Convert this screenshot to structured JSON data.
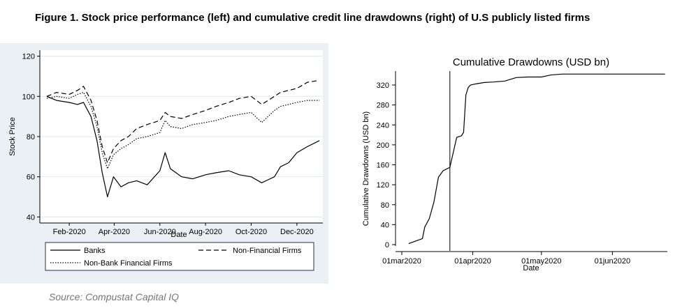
{
  "figure_title": "Figure 1. Stock price performance (left) and cumulative credit line drawdowns (right) of U.S publicly listed firms",
  "source": "Source: Compustat Capital IQ",
  "chart_data": [
    {
      "type": "line",
      "title": "",
      "xlabel": "Date",
      "ylabel": "Stock Price",
      "ylim": [
        40,
        120
      ],
      "yticks": [
        "40",
        "60",
        "80",
        "100",
        "120"
      ],
      "xticks": [
        "Feb-2020",
        "Apr-2020",
        "Jun-2020",
        "Aug-2020",
        "Oct-2020",
        "Dec-2020"
      ],
      "xlim": [
        "2020-01-02",
        "2020-12-31"
      ],
      "grid": true,
      "legend_position": "bottom",
      "x": [
        "2020-01-02",
        "2020-01-15",
        "2020-02-01",
        "2020-02-12",
        "2020-02-20",
        "2020-03-01",
        "2020-03-09",
        "2020-03-16",
        "2020-03-23",
        "2020-03-31",
        "2020-04-10",
        "2020-04-20",
        "2020-05-01",
        "2020-05-15",
        "2020-06-01",
        "2020-06-08",
        "2020-06-15",
        "2020-06-30",
        "2020-07-15",
        "2020-08-01",
        "2020-08-15",
        "2020-09-01",
        "2020-09-15",
        "2020-10-01",
        "2020-10-15",
        "2020-11-01",
        "2020-11-09",
        "2020-11-20",
        "2020-12-01",
        "2020-12-15",
        "2020-12-31"
      ],
      "series": [
        {
          "name": "Banks",
          "style": "solid",
          "values": [
            100,
            98,
            97,
            96,
            97,
            90,
            78,
            62,
            50,
            60,
            55,
            57,
            58,
            56,
            63,
            72,
            64,
            60,
            59,
            61,
            62,
            63,
            61,
            60,
            57,
            60,
            65,
            67,
            72,
            75,
            78
          ]
        },
        {
          "name": "Non-Financial Firms",
          "style": "dashed",
          "values": [
            100,
            102,
            101,
            103,
            105,
            98,
            88,
            75,
            67,
            74,
            78,
            80,
            84,
            86,
            88,
            92,
            90,
            89,
            91,
            93,
            95,
            97,
            99,
            100,
            96,
            100,
            102,
            103,
            104,
            107,
            108
          ]
        },
        {
          "name": "Non-Bank Financial Firms",
          "style": "dotted",
          "values": [
            99,
            100,
            99,
            101,
            102,
            95,
            85,
            72,
            64,
            71,
            74,
            76,
            79,
            80,
            82,
            88,
            85,
            84,
            86,
            87,
            88,
            90,
            91,
            92,
            87,
            93,
            95,
            96,
            97,
            98,
            98
          ]
        }
      ]
    },
    {
      "type": "line",
      "title": "Cumulative Drawdowns (USD bn)",
      "xlabel": "Date",
      "ylabel": "Cumulative Drawdowns (USD bn)",
      "ylim": [
        0,
        340
      ],
      "yticks": [
        "0",
        "40",
        "80",
        "120",
        "160",
        "200",
        "240",
        "280",
        "320"
      ],
      "xticks": [
        "01mar2020",
        "01apr2020",
        "01may2020",
        "01jun2020"
      ],
      "xlim": [
        "2020-03-01",
        "2020-06-25"
      ],
      "grid": false,
      "vertical_line": "2020-03-22",
      "x": [
        "2020-03-04",
        "2020-03-10",
        "2020-03-11",
        "2020-03-13",
        "2020-03-15",
        "2020-03-17",
        "2020-03-19",
        "2020-03-22",
        "2020-03-24",
        "2020-03-25",
        "2020-03-27",
        "2020-03-28",
        "2020-03-29",
        "2020-03-30",
        "2020-03-31",
        "2020-04-02",
        "2020-04-06",
        "2020-04-10",
        "2020-04-15",
        "2020-04-20",
        "2020-04-25",
        "2020-05-01",
        "2020-05-05",
        "2020-05-10",
        "2020-05-20",
        "2020-06-01",
        "2020-06-10",
        "2020-06-24"
      ],
      "values": [
        2,
        12,
        35,
        52,
        85,
        135,
        148,
        155,
        195,
        215,
        218,
        225,
        300,
        315,
        320,
        322,
        325,
        326,
        328,
        335,
        336,
        336,
        340,
        342,
        342,
        342,
        342,
        342
      ]
    }
  ]
}
